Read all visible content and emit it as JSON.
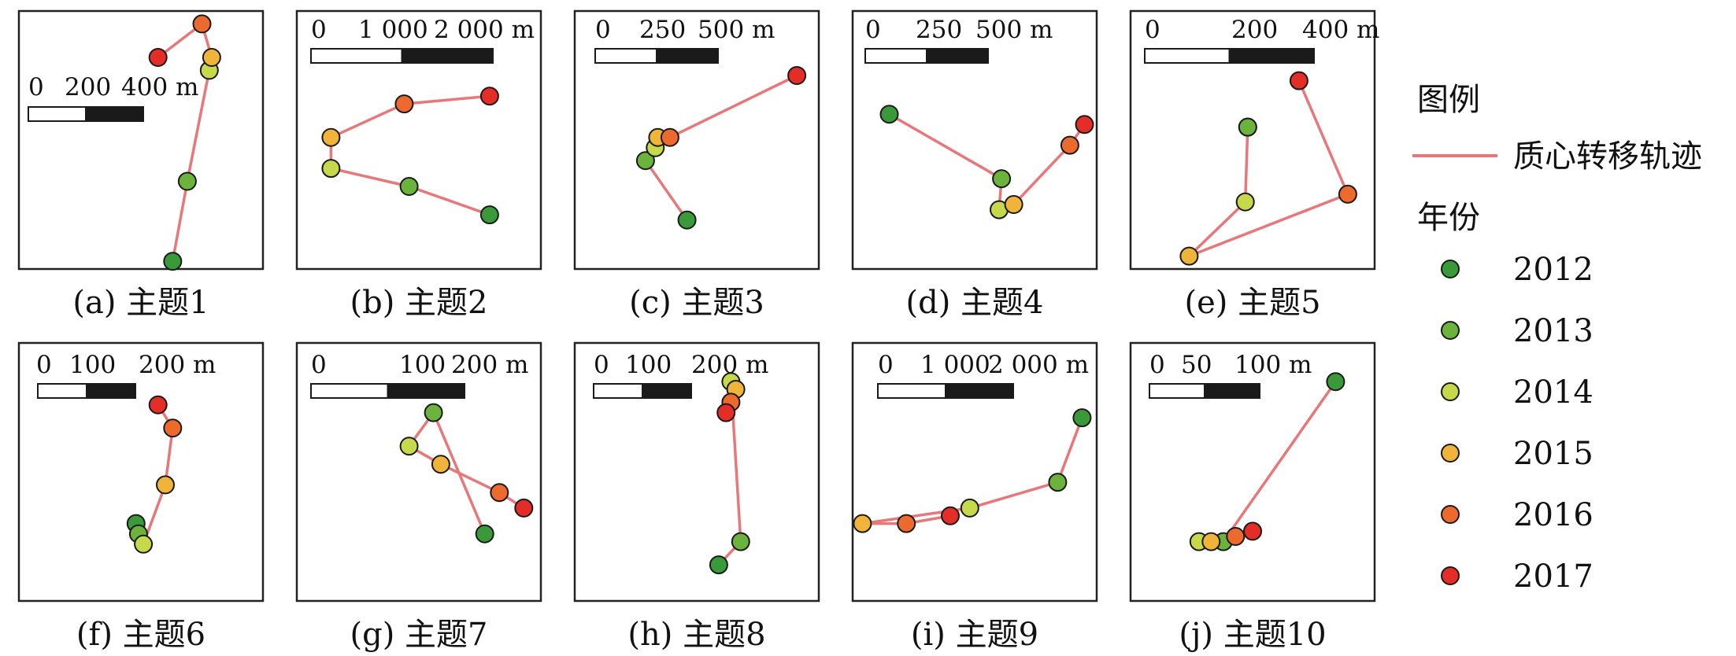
{
  "panels": [
    {
      "caption": "(a) 主题1",
      "scale_labels": [
        "0",
        "200",
        "400 m"
      ],
      "years": [
        "2012",
        "2013",
        "2014",
        "2015",
        "2016",
        "2017"
      ],
      "points": [
        [
          0.63,
          0.97
        ],
        [
          0.69,
          0.66
        ],
        [
          0.78,
          0.23
        ],
        [
          0.79,
          0.18
        ],
        [
          0.75,
          0.05
        ],
        [
          0.57,
          0.18
        ]
      ]
    },
    {
      "caption": "(b) 主题2",
      "scale_labels": [
        "0",
        "1 000",
        "2 000 m"
      ],
      "years": [
        "2012",
        "2013",
        "2014",
        "2015",
        "2016",
        "2017"
      ],
      "points": [
        [
          0.79,
          0.79
        ],
        [
          0.46,
          0.68
        ],
        [
          0.14,
          0.61
        ],
        [
          0.14,
          0.49
        ],
        [
          0.44,
          0.36
        ],
        [
          0.79,
          0.33
        ]
      ]
    },
    {
      "caption": "(c) 主题3",
      "scale_labels": [
        "0",
        "250",
        "500 m"
      ],
      "years": [
        "2012",
        "2013",
        "2014",
        "2015",
        "2016",
        "2017"
      ],
      "points": [
        [
          0.46,
          0.81
        ],
        [
          0.29,
          0.58
        ],
        [
          0.33,
          0.53
        ],
        [
          0.34,
          0.49
        ],
        [
          0.39,
          0.49
        ],
        [
          0.91,
          0.25
        ]
      ]
    },
    {
      "caption": "(d) 主题4",
      "scale_labels": [
        "0",
        "250",
        "500 m"
      ],
      "years": [
        "2012",
        "2013",
        "2014",
        "2015",
        "2016",
        "2017"
      ],
      "points": [
        [
          0.15,
          0.4
        ],
        [
          0.61,
          0.65
        ],
        [
          0.6,
          0.77
        ],
        [
          0.66,
          0.75
        ],
        [
          0.89,
          0.52
        ],
        [
          0.95,
          0.44
        ]
      ]
    },
    {
      "caption": "(e) 主题5",
      "scale_labels": [
        "0",
        "200",
        "400 m"
      ],
      "years": [
        "2012",
        "2013",
        "2014",
        "2015",
        "2016",
        "2017"
      ],
      "points": [
        [
          0.48,
          0.45
        ],
        [
          0.48,
          0.45
        ],
        [
          0.47,
          0.74
        ],
        [
          0.24,
          0.95
        ],
        [
          0.89,
          0.71
        ],
        [
          0.69,
          0.27
        ]
      ]
    },
    {
      "caption": "(f) 主题6",
      "scale_labels": [
        "0",
        "100",
        "200 m"
      ],
      "years": [
        "2012",
        "2013",
        "2014",
        "2015",
        "2016",
        "2017"
      ],
      "points": [
        [
          0.48,
          0.7
        ],
        [
          0.49,
          0.74
        ],
        [
          0.51,
          0.78
        ],
        [
          0.6,
          0.55
        ],
        [
          0.63,
          0.33
        ],
        [
          0.57,
          0.24
        ]
      ]
    },
    {
      "caption": "(g) 主题7",
      "scale_labels": [
        "0",
        "100",
        "200 m"
      ],
      "years": [
        "2012",
        "2013",
        "2014",
        "2015",
        "2016",
        "2017"
      ],
      "points": [
        [
          0.77,
          0.74
        ],
        [
          0.56,
          0.27
        ],
        [
          0.46,
          0.4
        ],
        [
          0.59,
          0.47
        ],
        [
          0.83,
          0.58
        ],
        [
          0.93,
          0.64
        ]
      ]
    },
    {
      "caption": "(h) 主题8",
      "scale_labels": [
        "0",
        "100",
        "200 m"
      ],
      "years": [
        "2012",
        "2013",
        "2014",
        "2015",
        "2016",
        "2017"
      ],
      "points": [
        [
          0.59,
          0.86
        ],
        [
          0.68,
          0.77
        ],
        [
          0.64,
          0.15
        ],
        [
          0.66,
          0.18
        ],
        [
          0.64,
          0.23
        ],
        [
          0.62,
          0.27
        ]
      ]
    },
    {
      "caption": "(i) 主题9",
      "scale_labels": [
        "0",
        "1 000",
        "2 000 m"
      ],
      "years": [
        "2012",
        "2013",
        "2014",
        "2015",
        "2016",
        "2017"
      ],
      "points": [
        [
          0.94,
          0.29
        ],
        [
          0.84,
          0.54
        ],
        [
          0.48,
          0.64
        ],
        [
          0.04,
          0.7
        ],
        [
          0.22,
          0.7
        ],
        [
          0.4,
          0.67
        ]
      ]
    },
    {
      "caption": "(j) 主题10",
      "scale_labels": [
        "0",
        "50",
        "100 m"
      ],
      "years": [
        "2012",
        "2013",
        "2014",
        "2015",
        "2016",
        "2017"
      ],
      "points": [
        [
          0.84,
          0.15
        ],
        [
          0.38,
          0.77
        ],
        [
          0.28,
          0.77
        ],
        [
          0.33,
          0.77
        ],
        [
          0.43,
          0.75
        ],
        [
          0.5,
          0.73
        ]
      ]
    }
  ],
  "legend": {
    "title": "图例",
    "line_label": "质心转移轨迹",
    "year_title": "年份",
    "years": [
      "2012",
      "2013",
      "2014",
      "2015",
      "2016",
      "2017"
    ]
  },
  "colors": {
    "trajectory": "#e8777a",
    "scalebar_fill": "#1a1a1a",
    "frame": "#222222",
    "year_colors": {
      "2012": "#3a9a3a",
      "2013": "#6cb33e",
      "2014": "#c6d94a",
      "2015": "#f0b43a",
      "2016": "#ec6a2e",
      "2017": "#e52d27"
    }
  }
}
